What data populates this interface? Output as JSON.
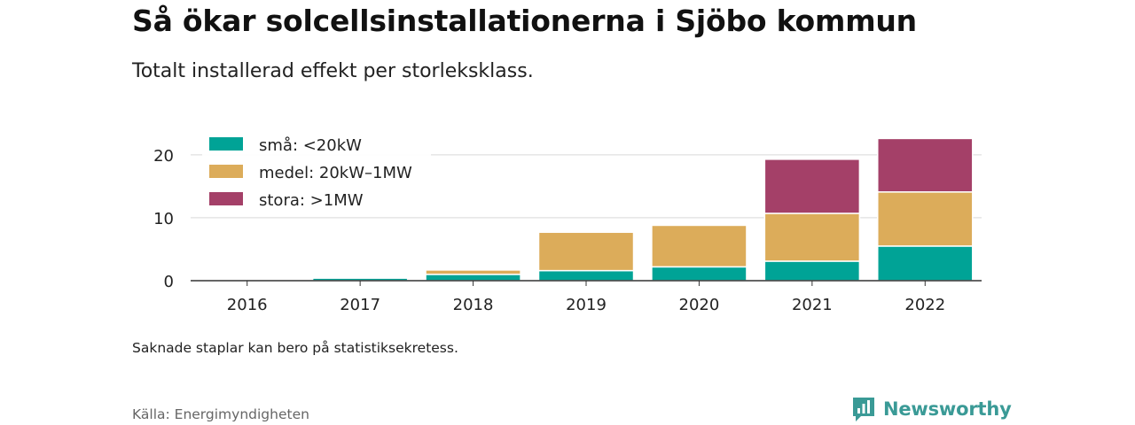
{
  "header": {
    "title": "Så ökar solcellsinstallationerna i Sjöbo kommun",
    "subtitle": "Totalt installerad effekt per storleksklass."
  },
  "footer": {
    "note": "Saknade staplar kan bero på statistiksekretess.",
    "source": "Källa: Energimyndigheten",
    "brand": "Newsworthy",
    "brand_icon": "newsworthy-logo-icon",
    "brand_color": "#3a9a96"
  },
  "chart_data": {
    "type": "bar",
    "stacked": true,
    "categories": [
      "2016",
      "2017",
      "2018",
      "2019",
      "2020",
      "2021",
      "2022"
    ],
    "series": [
      {
        "name": "små: <20kW",
        "color": "#00a396",
        "values": [
          0.1,
          0.4,
          1.0,
          1.6,
          2.2,
          3.1,
          5.5
        ]
      },
      {
        "name": "medel: 20kW–1MW",
        "color": "#dcac5a",
        "values": [
          0,
          0,
          0.7,
          6.1,
          6.6,
          7.6,
          8.6
        ]
      },
      {
        "name": "stora: >1MW",
        "color": "#a44068",
        "values": [
          0,
          0,
          0,
          0,
          0,
          8.6,
          8.5
        ]
      }
    ],
    "yticks": [
      0,
      10,
      20
    ],
    "ylim": [
      0,
      23.5
    ],
    "grid": true,
    "legend_position": "top-left"
  }
}
